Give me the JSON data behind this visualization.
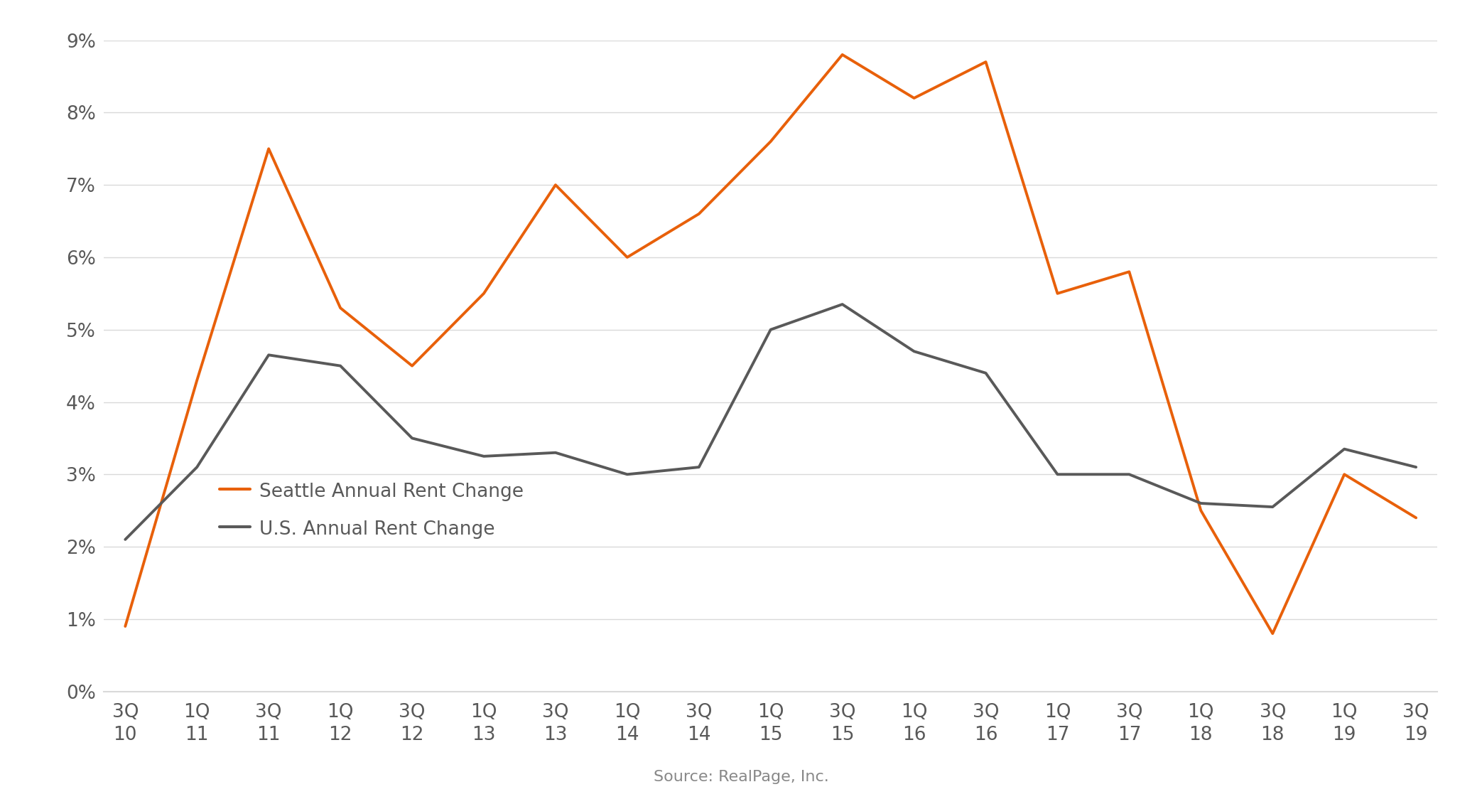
{
  "x_labels": [
    "3Q\n10",
    "1Q\n11",
    "3Q\n11",
    "1Q\n12",
    "3Q\n12",
    "1Q\n13",
    "3Q\n13",
    "1Q\n14",
    "3Q\n14",
    "1Q\n15",
    "3Q\n15",
    "1Q\n16",
    "3Q\n16",
    "1Q\n17",
    "3Q\n17",
    "1Q\n18",
    "3Q\n18",
    "1Q\n19",
    "3Q\n19"
  ],
  "seattle": [
    0.9,
    4.3,
    7.5,
    5.3,
    4.5,
    5.5,
    7.0,
    6.0,
    6.6,
    7.6,
    8.8,
    8.2,
    8.7,
    5.5,
    5.8,
    2.5,
    0.8,
    3.0,
    2.4
  ],
  "us": [
    2.1,
    3.1,
    4.65,
    4.5,
    3.5,
    3.25,
    3.3,
    3.0,
    3.1,
    5.0,
    5.35,
    4.7,
    4.4,
    3.0,
    3.0,
    2.6,
    2.55,
    3.35,
    3.1
  ],
  "seattle_color": "#E8600A",
  "us_color": "#595959",
  "background_color": "#ffffff",
  "seattle_label": "Seattle Annual Rent Change",
  "us_label": "U.S. Annual Rent Change",
  "source_text": "Source: RealPage, Inc.",
  "ylim_min": 0,
  "ylim_max": 9,
  "yticks": [
    0,
    1,
    2,
    3,
    4,
    5,
    6,
    7,
    8,
    9
  ],
  "ytick_labels": [
    "0%",
    "1%",
    "2%",
    "3%",
    "4%",
    "5%",
    "6%",
    "7%",
    "8%",
    "9%"
  ],
  "line_width": 2.8,
  "legend_fontsize": 19,
  "tick_fontsize": 19,
  "source_fontsize": 16,
  "grid_color": "#d9d9d9",
  "spine_color": "#d9d9d9",
  "tick_label_color": "#595959",
  "legend_label_color": "#595959"
}
